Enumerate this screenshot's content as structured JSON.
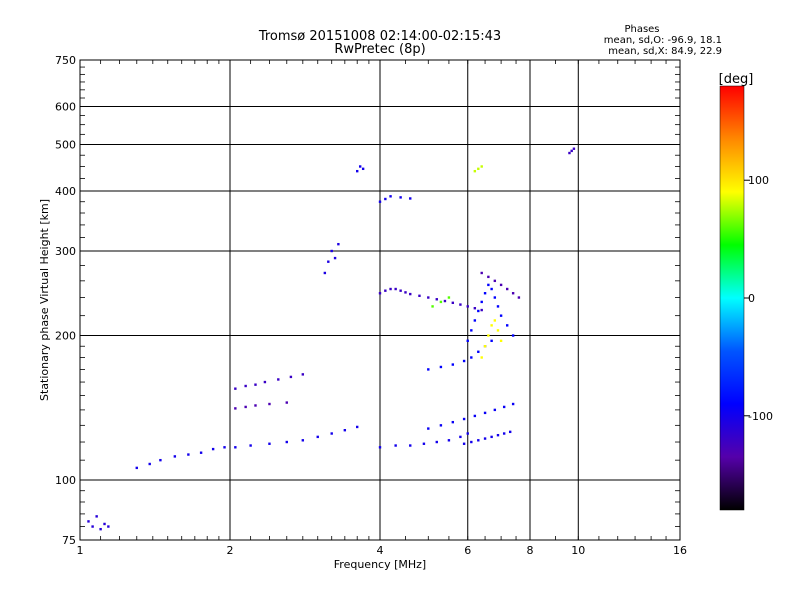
{
  "chart_data": {
    "type": "scatter",
    "title": "Tromsø 20151008 02:14:00-02:15:43",
    "subtitle": "RwPretec (8p)",
    "xlabel": "Frequency [MHz]",
    "ylabel": "Stationary phase Virtual Height [km]",
    "x_scale": "log2",
    "y_scale": "log",
    "xlim": [
      1,
      16
    ],
    "ylim": [
      75,
      750
    ],
    "x_ticks": [
      1,
      2,
      4,
      6,
      8,
      10,
      16
    ],
    "x_tick_labels": [
      "1",
      "2",
      "4",
      "6",
      "8",
      "10",
      "16"
    ],
    "y_ticks": [
      75,
      100,
      200,
      300,
      400,
      500,
      600,
      750
    ],
    "y_tick_labels": [
      "75",
      "100",
      "200",
      "300",
      "400",
      "500",
      "600",
      "750"
    ],
    "grid": true,
    "phase_stats": {
      "heading": "Phases",
      "line_o": "mean, sd,O: -96.9, 18.1",
      "line_x": "mean, sd,X:  84.9, 22.9"
    },
    "colorbar": {
      "label": "[deg]",
      "range": [
        -180,
        180
      ],
      "ticks": [
        100,
        0,
        -100
      ],
      "tick_labels": [
        "100",
        "0",
        "-100"
      ],
      "colors": [
        "#ff0000",
        "#ff8800",
        "#ffff00",
        "#00ff00",
        "#00ffff",
        "#0055ff",
        "#0000ff",
        "#5500aa",
        "#000000"
      ]
    },
    "traces": [
      {
        "x": [
          1.04,
          1.06,
          1.08,
          1.1,
          1.12,
          1.14
        ],
        "y": [
          82,
          80,
          84,
          79,
          81,
          80
        ],
        "phase": -110
      },
      {
        "x": [
          1.3,
          1.38,
          1.45,
          1.55,
          1.65,
          1.75,
          1.85,
          1.95,
          2.05,
          2.2,
          2.4,
          2.6,
          2.8,
          3.0,
          3.2,
          3.4,
          3.6
        ],
        "y": [
          106,
          108,
          110,
          112,
          113,
          114,
          116,
          117,
          117,
          118,
          119,
          120,
          121,
          123,
          125,
          127,
          129
        ],
        "phase": -100
      },
      {
        "x": [
          2.05,
          2.15,
          2.25,
          2.35,
          2.5,
          2.65,
          2.8
        ],
        "y": [
          155,
          157,
          158,
          160,
          162,
          164,
          166
        ],
        "phase": -120
      },
      {
        "x": [
          2.05,
          2.15,
          2.25,
          2.4,
          2.6
        ],
        "y": [
          141,
          142,
          143,
          144,
          145
        ],
        "phase": -130
      },
      {
        "x": [
          3.1,
          3.15,
          3.2,
          3.25,
          3.3
        ],
        "y": [
          270,
          285,
          300,
          290,
          310
        ],
        "phase": -105
      },
      {
        "x": [
          3.6,
          3.65,
          3.7
        ],
        "y": [
          440,
          450,
          445
        ],
        "phase": -100
      },
      {
        "x": [
          4.0,
          4.1,
          4.2,
          4.3,
          4.4,
          4.5,
          4.6,
          4.8,
          5.0,
          5.2,
          5.4,
          5.6,
          5.8,
          6.0,
          6.2,
          6.4
        ],
        "y": [
          245,
          248,
          250,
          250,
          248,
          246,
          244,
          242,
          240,
          238,
          236,
          234,
          232,
          230,
          228,
          226
        ],
        "phase": -120
      },
      {
        "x": [
          4.0,
          4.1,
          4.2,
          4.4,
          4.6
        ],
        "y": [
          380,
          385,
          390,
          388,
          386
        ],
        "phase": -100
      },
      {
        "x": [
          4.0,
          4.3,
          4.6,
          4.9,
          5.2,
          5.5,
          5.8,
          6.0
        ],
        "y": [
          117,
          118,
          118,
          119,
          120,
          121,
          123,
          125
        ],
        "phase": -100
      },
      {
        "x": [
          5.0,
          5.3,
          5.6,
          5.9,
          6.2,
          6.5,
          6.8,
          7.1,
          7.4
        ],
        "y": [
          128,
          130,
          132,
          134,
          136,
          138,
          140,
          142,
          144
        ],
        "phase": -95
      },
      {
        "x": [
          5.9,
          6.1,
          6.3,
          6.5,
          6.7,
          6.9,
          7.1,
          7.3
        ],
        "y": [
          119,
          120,
          121,
          122,
          123,
          124,
          125,
          126
        ],
        "phase": -100
      },
      {
        "x": [
          5.0,
          5.3,
          5.6,
          5.9,
          6.1,
          6.3,
          6.5,
          6.7
        ],
        "y": [
          170,
          172,
          174,
          177,
          180,
          185,
          190,
          195
        ],
        "phase": -90
      },
      {
        "x": [
          6.0,
          6.1,
          6.2,
          6.3,
          6.4,
          6.5,
          6.6,
          6.7,
          6.8,
          6.9,
          7.0,
          7.2,
          7.4
        ],
        "y": [
          195,
          205,
          215,
          225,
          235,
          245,
          255,
          250,
          240,
          230,
          220,
          210,
          200
        ],
        "phase": -90
      },
      {
        "x": [
          6.4,
          6.5,
          6.6,
          6.7,
          6.8,
          6.9,
          7.0
        ],
        "y": [
          180,
          190,
          200,
          210,
          215,
          205,
          195
        ],
        "phase": 90
      },
      {
        "x": [
          6.4,
          6.6,
          6.8,
          7.0,
          7.2,
          7.4,
          7.6
        ],
        "y": [
          270,
          265,
          260,
          255,
          250,
          245,
          240
        ],
        "phase": -130
      },
      {
        "x": [
          5.1,
          5.3,
          5.5
        ],
        "y": [
          230,
          235,
          240
        ],
        "phase": 60
      },
      {
        "x": [
          6.2,
          6.3,
          6.4
        ],
        "y": [
          440,
          445,
          450
        ],
        "phase": 80
      },
      {
        "x": [
          9.6,
          9.7,
          9.8
        ],
        "y": [
          480,
          485,
          490
        ],
        "phase": -120
      }
    ]
  }
}
